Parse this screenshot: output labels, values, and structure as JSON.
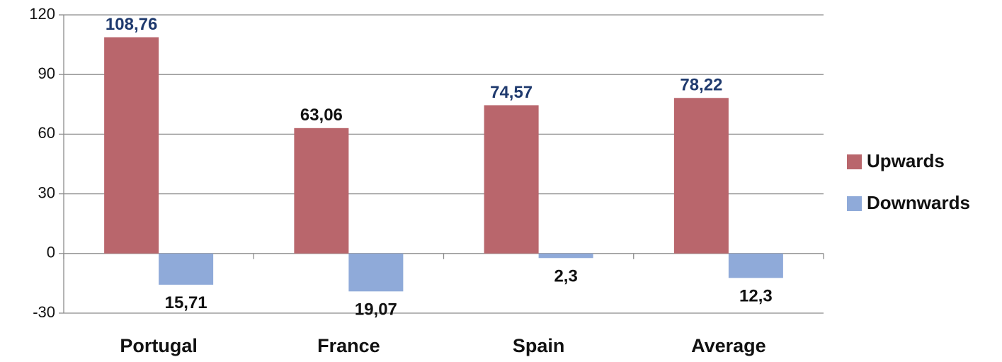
{
  "chart_data": {
    "type": "bar",
    "categories": [
      "Portugal",
      "France",
      "Spain",
      "Average"
    ],
    "series": [
      {
        "name": "Upwards",
        "color": "#b9666c",
        "values": [
          108.76,
          63.06,
          74.57,
          78.22
        ],
        "value_labels": [
          "108,76",
          "63,06",
          "74,57",
          "78,22"
        ],
        "value_label_colors": [
          "#1f3a6e",
          "#111111",
          "#1f3a6e",
          "#1f3a6e"
        ]
      },
      {
        "name": "Downwards",
        "color": "#8faad9",
        "values": [
          -15.71,
          -19.07,
          -2.3,
          -12.3
        ],
        "value_labels": [
          "15,71",
          "19,07",
          "2,3",
          "12,3"
        ],
        "value_label_colors": [
          "#111111",
          "#111111",
          "#111111",
          "#111111"
        ]
      }
    ],
    "ylim": [
      -30,
      120
    ],
    "yticks": [
      120,
      90,
      60,
      30,
      0,
      -30
    ],
    "grid": true,
    "legend": "right"
  }
}
